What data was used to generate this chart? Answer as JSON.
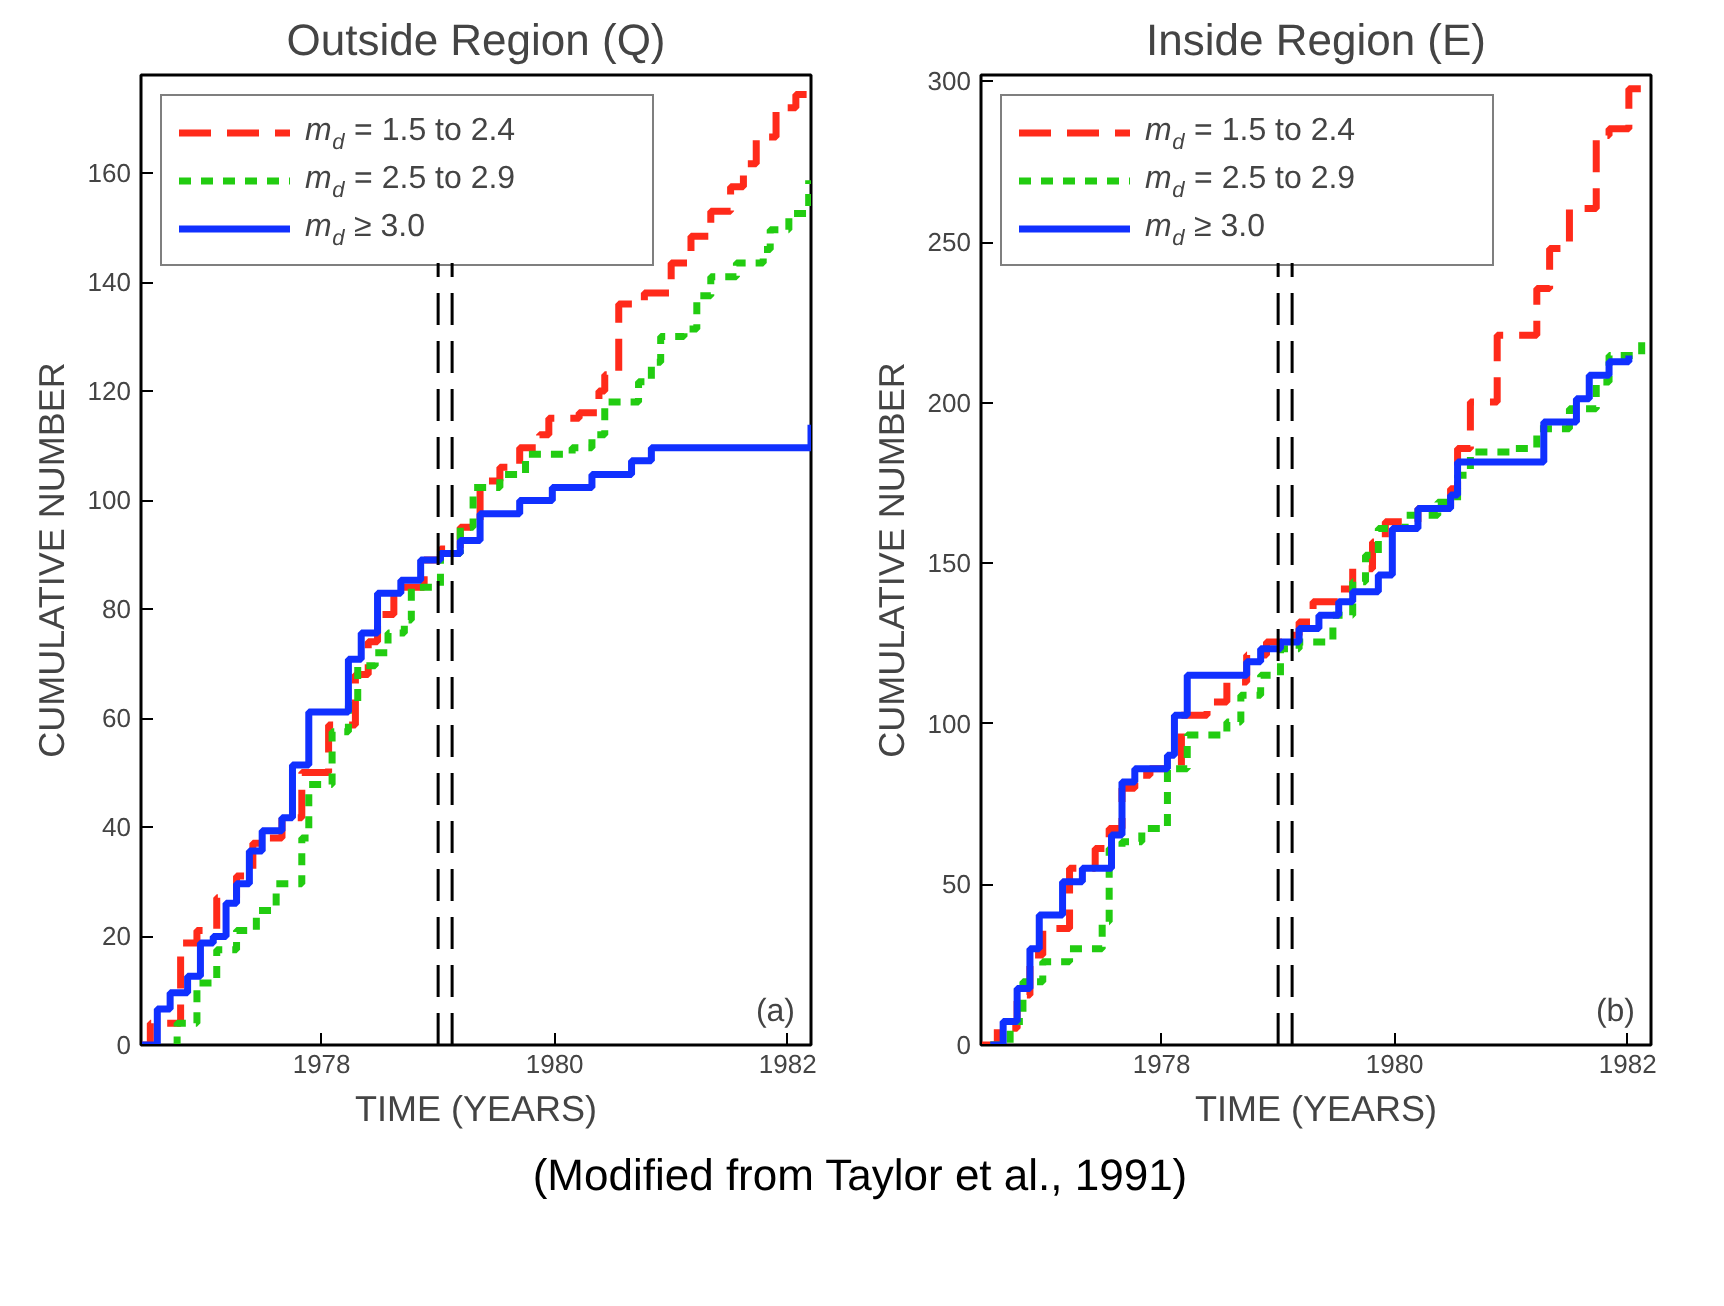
{
  "chart_data": [
    {
      "type": "step",
      "title": "Outside Region (Q)",
      "xlabel": "TIME (YEARS)",
      "ylabel": "CUMULATIVE NUMBER",
      "xlim": [
        1976.45,
        1982.2
      ],
      "xticks": [
        1978,
        1980,
        1982
      ],
      "ylim": [
        0,
        178
      ],
      "yticks": [
        0,
        20,
        40,
        60,
        80,
        100,
        120,
        140,
        160
      ],
      "grid": false,
      "legend": "top left",
      "series": [
        {
          "name": "m$_{d}$ = 1.5 to 2.4",
          "color": "#ff2a1a",
          "line_style": "dashed",
          "x": [
            1976.45,
            1976.53,
            1976.68,
            1976.79,
            1976.93,
            1977.07,
            1977.1,
            1977.21,
            1977.27,
            1977.41,
            1977.55,
            1977.66,
            1977.83,
            1977.98,
            1978.06,
            1978.17,
            1978.29,
            1978.4,
            1978.48,
            1978.62,
            1978.74,
            1978.88,
            1979.02,
            1979.19,
            1979.36,
            1979.53,
            1979.7,
            1979.87,
            1979.95,
            1980.21,
            1980.38,
            1980.43,
            1980.55,
            1980.77,
            1981.0,
            1981.17,
            1981.34,
            1981.51,
            1981.62,
            1981.73,
            1981.9,
            1982.07,
            1982.18
          ],
          "values": [
            0,
            4,
            4,
            18.7,
            21,
            21,
            27,
            27,
            31,
            37,
            38,
            41.7,
            50,
            50,
            58.7,
            58.7,
            68,
            74,
            79,
            84,
            84,
            89,
            91,
            95,
            103.5,
            106,
            109.6,
            112,
            115,
            116,
            120,
            123,
            136,
            138,
            143.5,
            148.4,
            153,
            157.5,
            161.7,
            166.6,
            172,
            174.4,
            176
          ]
        },
        {
          "name": "m$_{d}$ = 2.5 to 2.9",
          "color": "#22cc11",
          "line_style": "dotted",
          "x": [
            1976.73,
            1976.76,
            1976.87,
            1976.93,
            1977.1,
            1977.27,
            1977.44,
            1977.61,
            1977.75,
            1977.83,
            1977.89,
            1978.0,
            1978.09,
            1978.23,
            1978.31,
            1978.46,
            1978.57,
            1978.71,
            1978.77,
            1978.88,
            1979.02,
            1979.19,
            1979.3,
            1979.53,
            1979.75,
            1980.15,
            1980.32,
            1980.43,
            1980.72,
            1980.83,
            1980.91,
            1981.11,
            1981.22,
            1981.34,
            1981.56,
            1981.79,
            1981.85,
            1982.01,
            1982.18
          ],
          "values": [
            0,
            4,
            4,
            11.4,
            17.5,
            21,
            24.7,
            29.6,
            29.6,
            38,
            47.8,
            47.8,
            57.5,
            62.3,
            69.6,
            72,
            75.6,
            78,
            84,
            84,
            90.2,
            95,
            102.3,
            104.7,
            108.4,
            109.6,
            112,
            118,
            121.7,
            125.3,
            130,
            131.4,
            137.5,
            141,
            143.5,
            146,
            149.6,
            152.6,
            158.7
          ]
        },
        {
          "name": "m$_{d}$ ≥ 3.0",
          "color": "#1030ff",
          "line_style": "solid",
          "x": [
            1976.45,
            1976.59,
            1976.7,
            1976.85,
            1976.96,
            1977.07,
            1977.18,
            1977.27,
            1977.38,
            1977.49,
            1977.66,
            1977.75,
            1977.89,
            1978.17,
            1978.23,
            1978.34,
            1978.48,
            1978.68,
            1978.85,
            1979.02,
            1979.19,
            1979.36,
            1979.7,
            1979.98,
            1980.32,
            1980.66,
            1980.83,
            1982.18,
            1982.2
          ],
          "values": [
            0,
            6.6,
            9.6,
            12.6,
            18.7,
            19.9,
            26,
            29.6,
            35.6,
            39.3,
            41.7,
            51.4,
            61.1,
            61.1,
            70.8,
            75.6,
            82.9,
            85.3,
            89,
            90.2,
            92.6,
            97.5,
            99.9,
            102.3,
            104.7,
            107.2,
            109.6,
            109.6,
            113.8
          ]
        }
      ],
      "ref_lines": [
        {
          "axis": "x",
          "value": 1979.0,
          "color": "#000000",
          "line_style": "dashed"
        },
        {
          "axis": "x",
          "value": 1979.12,
          "color": "#000000",
          "line_style": "dashed"
        }
      ],
      "annotations": [
        "(a)"
      ]
    },
    {
      "type": "step",
      "title": "Inside Region (E)",
      "xlabel": "TIME (YEARS)",
      "ylabel": "CUMULATIVE NUMBER",
      "xlim": [
        1976.45,
        1982.2
      ],
      "xticks": [
        1978,
        1980,
        1982
      ],
      "ylim": [
        0,
        302
      ],
      "yticks": [
        0,
        50,
        100,
        150,
        200,
        250,
        300
      ],
      "grid": false,
      "legend": "top left",
      "series": [
        {
          "name": "m$_{d}$ = 1.5 to 2.4",
          "color": "#ff2a1a",
          "line_style": "dashed",
          "x": [
            1976.45,
            1976.59,
            1976.76,
            1976.87,
            1976.98,
            1977.09,
            1977.21,
            1977.43,
            1977.55,
            1977.66,
            1977.77,
            1977.9,
            1978.17,
            1978.39,
            1978.56,
            1978.73,
            1978.9,
            1979.07,
            1979.18,
            1979.3,
            1979.52,
            1979.64,
            1979.81,
            1979.92,
            1980.09,
            1980.2,
            1980.48,
            1980.54,
            1980.65,
            1980.88,
            1981.22,
            1981.33,
            1981.5,
            1981.73,
            1981.84,
            1982.01,
            1982.2
          ],
          "values": [
            0,
            5.2,
            15.6,
            28,
            36.3,
            36.3,
            55,
            61.2,
            67.4,
            79.9,
            84,
            86,
            102.7,
            106.8,
            113,
            121.4,
            125.5,
            127.6,
            131.7,
            138,
            142,
            148.3,
            156.6,
            162.9,
            162.9,
            167,
            173.2,
            185.7,
            200.2,
            221,
            235.5,
            248,
            260.4,
            283.2,
            285.3,
            297.7,
            298.8
          ]
        },
        {
          "name": "m$_{d}$ = 2.5 to 2.9",
          "color": "#22cc11",
          "line_style": "dotted",
          "x": [
            1976.53,
            1976.7,
            1976.81,
            1976.98,
            1977.21,
            1977.49,
            1977.55,
            1977.66,
            1977.83,
            1978.05,
            1978.22,
            1978.56,
            1978.68,
            1978.85,
            1979.02,
            1979.18,
            1979.47,
            1979.64,
            1979.75,
            1979.86,
            1980.09,
            1980.37,
            1980.54,
            1980.65,
            1980.99,
            1981.22,
            1981.5,
            1981.73,
            1981.84,
            1982.12
          ],
          "values": [
            0,
            7.3,
            19.7,
            25.9,
            30,
            38.4,
            61.2,
            63.3,
            67.4,
            86,
            96.5,
            100.6,
            108.9,
            115.1,
            123.4,
            125.5,
            133.8,
            144.2,
            152.5,
            160.8,
            164.9,
            169,
            177.4,
            184.6,
            185.7,
            191.9,
            198.1,
            206.4,
            214.7,
            221
          ]
        },
        {
          "name": "m$_{d}$ ≥ 3.0",
          "color": "#1030ff",
          "line_style": "solid",
          "x": [
            1976.53,
            1976.64,
            1976.76,
            1976.87,
            1976.95,
            1977.09,
            1977.15,
            1977.32,
            1977.43,
            1977.57,
            1977.66,
            1977.77,
            1978.05,
            1978.11,
            1978.22,
            1978.73,
            1978.85,
            1979.02,
            1979.18,
            1979.35,
            1979.52,
            1979.64,
            1979.86,
            1979.98,
            1980.2,
            1980.48,
            1980.54,
            1981.28,
            1981.56,
            1981.67,
            1981.84,
            1982.01
          ],
          "values": [
            0,
            7.3,
            17.6,
            30,
            40.5,
            40.5,
            50.8,
            55,
            55,
            65.4,
            81.9,
            86,
            90.2,
            102.7,
            115.1,
            119.3,
            123.4,
            125.5,
            129.7,
            133.8,
            138,
            141.1,
            146.3,
            160.8,
            167,
            171.2,
            181.5,
            194,
            201.2,
            208.5,
            212.7,
            214.7
          ]
        }
      ],
      "ref_lines": [
        {
          "axis": "x",
          "value": 1979.0,
          "color": "#000000",
          "line_style": "dashed"
        },
        {
          "axis": "x",
          "value": 1979.12,
          "color": "#000000",
          "line_style": "dashed"
        }
      ],
      "annotations": [
        "(b)",
        "(Modified from Taylor et al., 1991)"
      ]
    }
  ]
}
